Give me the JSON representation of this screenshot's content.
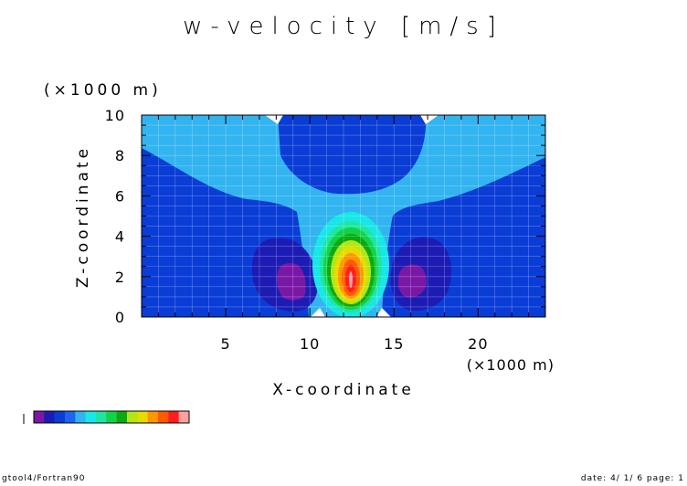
{
  "chart_data": {
    "type": "heatmap",
    "title": "w-velocity [m/s]",
    "xlabel": "X-coordinate",
    "ylabel": "Z-coordinate",
    "x_unit": "(×1000 m)",
    "y_unit": "(×1000 m)",
    "xlim": [
      0,
      24
    ],
    "ylim": [
      0,
      10
    ],
    "xticks": [
      "5",
      "10",
      "15",
      "20"
    ],
    "yticks": [
      "0",
      "2",
      "4",
      "6",
      "8",
      "10"
    ],
    "color_levels": [
      "#7a18a6",
      "#1c1cb4",
      "#0a3cd6",
      "#1e64f0",
      "#32b4f0",
      "#19e6e6",
      "#1ee6a0",
      "#14d246",
      "#0aaa14",
      "#b4e614",
      "#e6dc00",
      "#ff9600",
      "#ff5a00",
      "#ff1e1e",
      "#ffa0a0"
    ]
  },
  "footer": {
    "left": "gtool4/Fortran90",
    "right": "date: 4/ 1/ 6 page: 1"
  }
}
